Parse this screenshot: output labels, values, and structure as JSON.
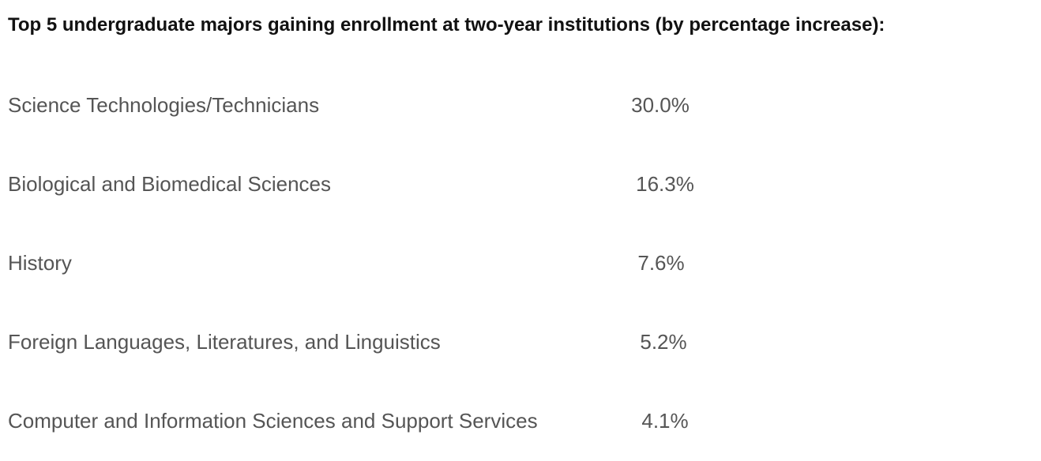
{
  "title": "Top 5 undergraduate majors gaining enrollment at two-year institutions (by percentage increase):",
  "majors": [
    {
      "label": "Science Technologies/Technicians",
      "value": "30.0%"
    },
    {
      "label": "Biological and Biomedical Sciences",
      "value": "16.3%"
    },
    {
      "label": "History",
      "value": "7.6%"
    },
    {
      "label": "Foreign Languages, Literatures, and Linguistics",
      "value": "5.2%"
    },
    {
      "label": "Computer and Information Sciences and Support Services",
      "value": "4.1%"
    }
  ]
}
